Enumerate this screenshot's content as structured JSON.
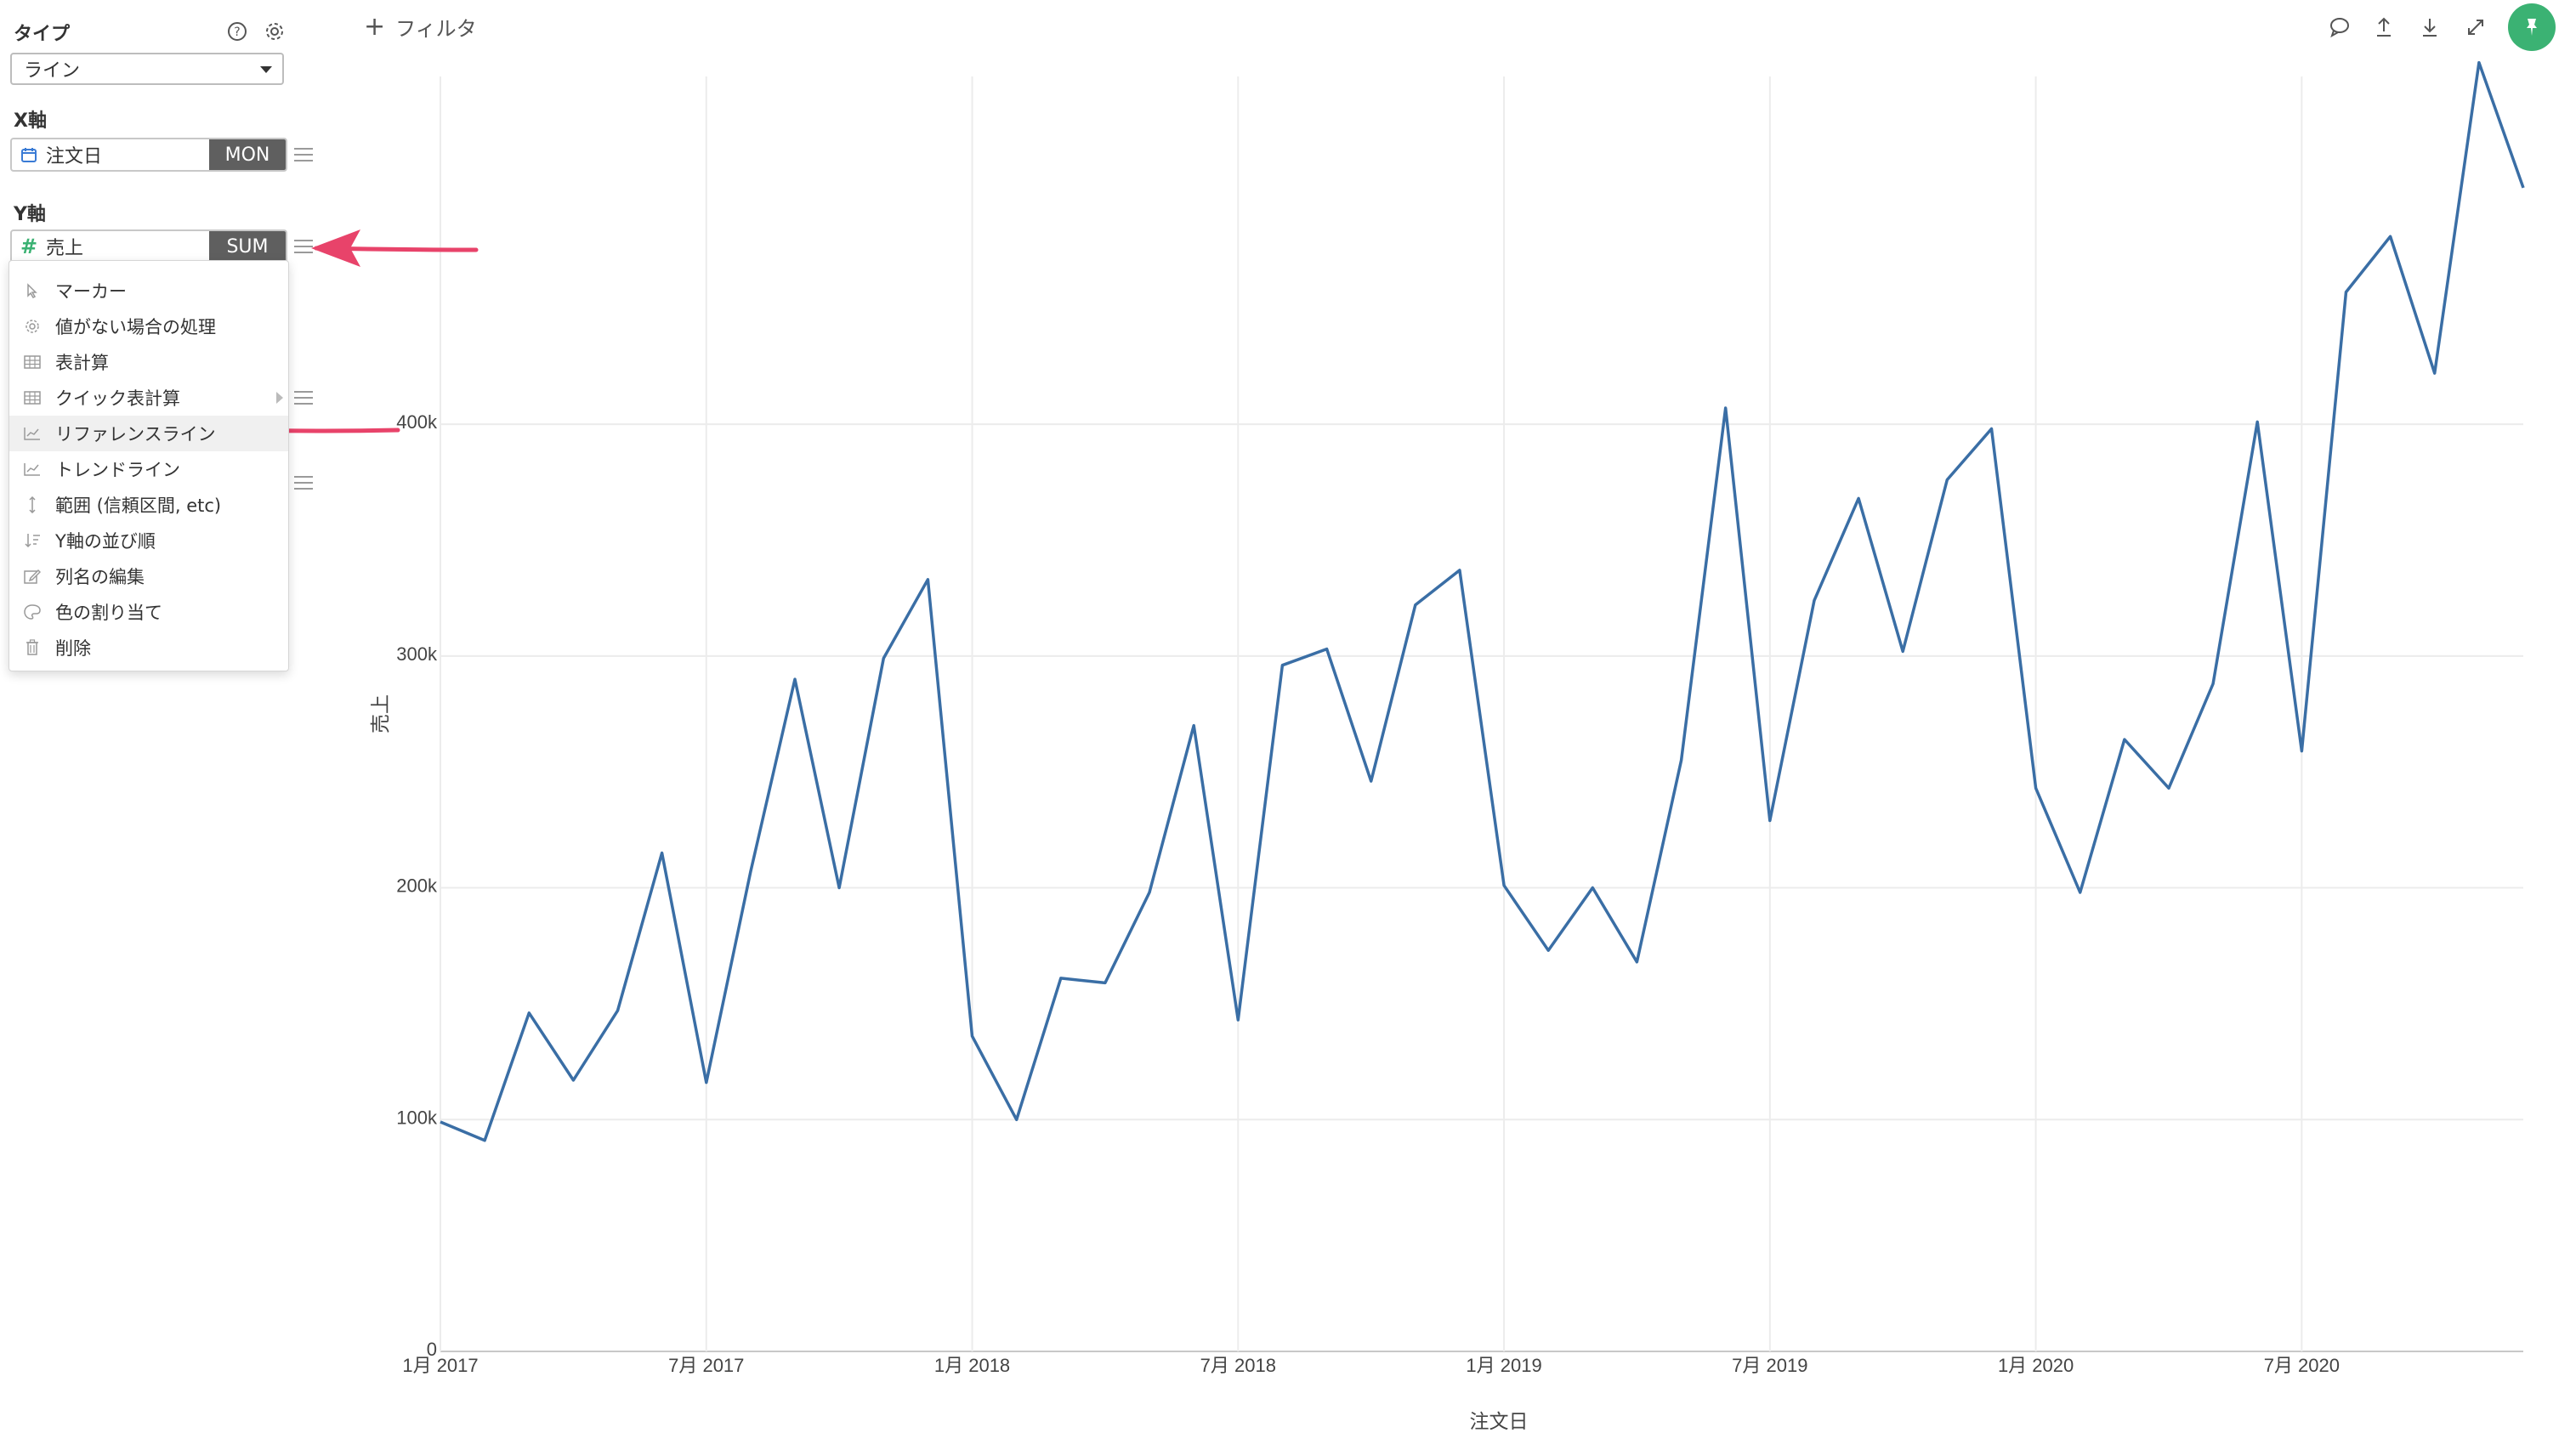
{
  "panel": {
    "type_title": "タイプ",
    "chart_type_value": "ライン",
    "x_axis_title": "X軸",
    "x_field": {
      "label": "注文日",
      "aggregation": "MON"
    },
    "y_axis_title": "Y軸",
    "y_field": {
      "label": "売上",
      "aggregation": "SUM"
    }
  },
  "menu": {
    "items": [
      {
        "label": "マーカー",
        "icon": "cursor-icon"
      },
      {
        "label": "値がない場合の処理",
        "icon": "gear-icon"
      },
      {
        "label": "表計算",
        "icon": "table-icon"
      },
      {
        "label": "クイック表計算",
        "icon": "table-icon"
      },
      {
        "label": "リファレンスライン",
        "icon": "line-chart-icon"
      },
      {
        "label": "トレンドライン",
        "icon": "line-chart-icon"
      },
      {
        "label": "範囲 (信頼区間, etc)",
        "icon": "range-icon"
      },
      {
        "label": "Y軸の並び順",
        "icon": "sort-icon"
      },
      {
        "label": "列名の編集",
        "icon": "edit-icon"
      },
      {
        "label": "色の割り当て",
        "icon": "palette-icon"
      },
      {
        "label": "削除",
        "icon": "trash-icon"
      }
    ]
  },
  "toolbar": {
    "filter_label": "フィルタ",
    "icons": [
      "comment-icon",
      "upload-icon",
      "download-icon",
      "expand-icon",
      "pin-icon"
    ]
  },
  "colors": {
    "line": "#3a6ea5",
    "arrow": "#e8436a",
    "pin": "#3bb273"
  },
  "chart_data": {
    "type": "line",
    "xlabel": "注文日",
    "ylabel": "売上",
    "ylim": [
      0,
      550000
    ],
    "y_ticks": [
      0,
      100000,
      200000,
      300000,
      400000
    ],
    "y_tick_labels": [
      "0",
      "100k",
      "200k",
      "300k",
      "400k"
    ],
    "x_tick_labels": [
      "1月 2017",
      "7月 2017",
      "1月 2018",
      "7月 2018",
      "1月 2019",
      "7月 2019",
      "1月 2020",
      "7月 2020"
    ],
    "x_tick_months": [
      0,
      6,
      12,
      18,
      24,
      30,
      36,
      42
    ],
    "x": [
      "2017-01",
      "2017-02",
      "2017-03",
      "2017-04",
      "2017-05",
      "2017-06",
      "2017-07",
      "2017-08",
      "2017-09",
      "2017-10",
      "2017-11",
      "2017-12",
      "2018-01",
      "2018-02",
      "2018-03",
      "2018-04",
      "2018-05",
      "2018-06",
      "2018-07",
      "2018-08",
      "2018-09",
      "2018-10",
      "2018-11",
      "2018-12",
      "2019-01",
      "2019-02",
      "2019-03",
      "2019-04",
      "2019-05",
      "2019-06",
      "2019-07",
      "2019-08",
      "2019-09",
      "2019-10",
      "2019-11",
      "2019-12",
      "2020-01",
      "2020-02",
      "2020-03",
      "2020-04",
      "2020-05",
      "2020-06",
      "2020-07",
      "2020-08",
      "2020-09",
      "2020-10",
      "2020-11",
      "2020-12"
    ],
    "values": [
      99000,
      91000,
      146000,
      117000,
      147000,
      215000,
      116000,
      207000,
      290000,
      200000,
      299000,
      333000,
      136000,
      100000,
      161000,
      159000,
      198000,
      270000,
      143000,
      296000,
      303000,
      246000,
      322000,
      337000,
      201000,
      173000,
      200000,
      168000,
      255000,
      407000,
      229000,
      324000,
      368000,
      302000,
      376000,
      398000,
      243000,
      198000,
      264000,
      243000,
      288000,
      401000,
      259000,
      457000,
      481000,
      422000,
      556000,
      502000
    ]
  }
}
